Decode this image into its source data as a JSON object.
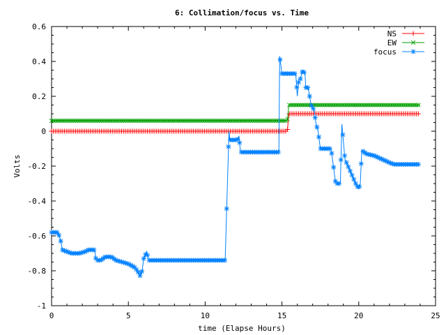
{
  "chart_data": {
    "type": "line",
    "title": "6: Collimation/focus vs. Time",
    "xlabel": "time (Elapse Hours)",
    "ylabel": "Volts",
    "xlim": [
      0,
      25
    ],
    "ylim": [
      -1,
      0.6
    ],
    "xticks": [
      "0",
      "5",
      "10",
      "15",
      "20",
      "25"
    ],
    "yticks": [
      "-1",
      "-0.8",
      "-0.6",
      "-0.4",
      "-0.2",
      "0",
      "0.2",
      "0.4",
      "0.6"
    ],
    "grid": false,
    "legend_position": "top-right",
    "series": [
      {
        "name": "NS",
        "color": "#ff0000",
        "marker": "plus",
        "points": [
          [
            0,
            0.0
          ],
          [
            15.35,
            0.0
          ],
          [
            15.45,
            0.1
          ],
          [
            24.0,
            0.1
          ]
        ]
      },
      {
        "name": "EW",
        "color": "#00a000",
        "marker": "cross",
        "points": [
          [
            0,
            0.06
          ],
          [
            15.35,
            0.06
          ],
          [
            15.45,
            0.15
          ],
          [
            24.0,
            0.15
          ]
        ]
      },
      {
        "name": "focus",
        "color": "#0080ff",
        "marker": "star",
        "points": [
          [
            0,
            -0.58
          ],
          [
            0.4,
            -0.58
          ],
          [
            0.5,
            -0.6
          ],
          [
            0.6,
            -0.63
          ],
          [
            0.7,
            -0.68
          ],
          [
            1.0,
            -0.69
          ],
          [
            1.3,
            -0.7
          ],
          [
            1.8,
            -0.7
          ],
          [
            2.2,
            -0.69
          ],
          [
            2.4,
            -0.68
          ],
          [
            2.8,
            -0.68
          ],
          [
            2.9,
            -0.74
          ],
          [
            3.2,
            -0.74
          ],
          [
            3.5,
            -0.72
          ],
          [
            3.9,
            -0.72
          ],
          [
            4.2,
            -0.74
          ],
          [
            4.6,
            -0.75
          ],
          [
            5.0,
            -0.76
          ],
          [
            5.4,
            -0.78
          ],
          [
            5.6,
            -0.8
          ],
          [
            5.75,
            -0.83
          ],
          [
            5.9,
            -0.8
          ],
          [
            6.0,
            -0.73
          ],
          [
            6.2,
            -0.69
          ],
          [
            6.3,
            -0.74
          ],
          [
            8.5,
            -0.74
          ],
          [
            11.3,
            -0.74
          ],
          [
            11.55,
            0.0
          ],
          [
            11.6,
            -0.05
          ],
          [
            12.0,
            -0.05
          ],
          [
            12.1,
            -0.05
          ],
          [
            12.2,
            -0.03
          ],
          [
            12.3,
            -0.12
          ],
          [
            13.5,
            -0.12
          ],
          [
            14.8,
            -0.12
          ],
          [
            14.85,
            0.43
          ],
          [
            15.0,
            0.33
          ],
          [
            15.9,
            0.33
          ],
          [
            16.0,
            0.2
          ],
          [
            16.1,
            0.3
          ],
          [
            16.2,
            0.3
          ],
          [
            16.35,
            0.35
          ],
          [
            16.5,
            0.33
          ],
          [
            16.55,
            0.25
          ],
          [
            16.7,
            0.25
          ],
          [
            16.8,
            0.2
          ],
          [
            16.9,
            0.15
          ],
          [
            17.1,
            0.12
          ],
          [
            17.2,
            0.05
          ],
          [
            17.35,
            0.0
          ],
          [
            17.5,
            -0.1
          ],
          [
            18.2,
            -0.1
          ],
          [
            18.5,
            -0.3
          ],
          [
            18.8,
            -0.3
          ],
          [
            18.9,
            0.04
          ],
          [
            19.1,
            -0.16
          ],
          [
            19.5,
            -0.24
          ],
          [
            19.8,
            -0.3
          ],
          [
            20.0,
            -0.33
          ],
          [
            20.1,
            -0.3
          ],
          [
            20.2,
            -0.11
          ],
          [
            20.5,
            -0.13
          ],
          [
            21.0,
            -0.14
          ],
          [
            21.5,
            -0.16
          ],
          [
            22.0,
            -0.18
          ],
          [
            22.3,
            -0.19
          ],
          [
            22.5,
            -0.19
          ],
          [
            24.0,
            -0.19
          ]
        ]
      }
    ]
  }
}
